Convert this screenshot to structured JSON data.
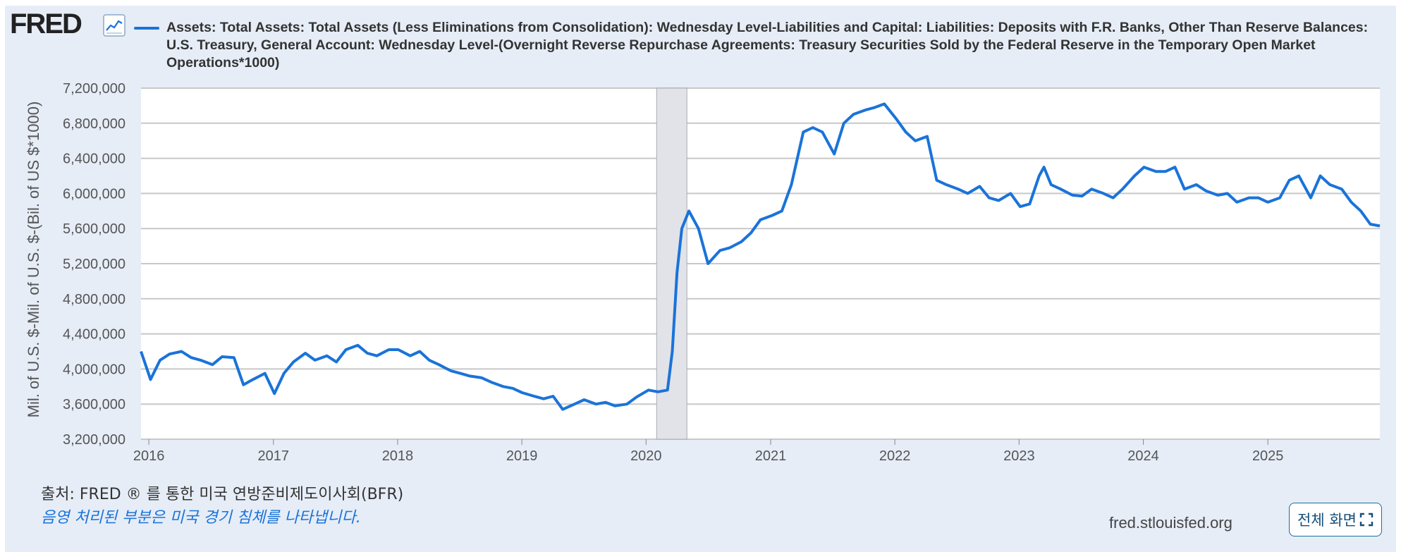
{
  "header": {
    "logo_text": "FRED",
    "logo_icon": "trend-line-icon",
    "legend_text": "Assets: Total Assets: Total Assets (Less Eliminations from Consolidation): Wednesday Level-Liabilities and Capital: Liabilities: Deposits with F.R. Banks, Other Than Reserve Balances: U.S. Treasury, General Account: Wednesday Level-(Overnight Reverse Repurchase Agreements: Treasury Securities Sold by the Federal Reserve in the Temporary Open Market Operations*1000)"
  },
  "colors": {
    "series": "#1a73d9",
    "background": "#e6edf7",
    "plot_background": "#ffffff",
    "grid": "#c8c8c8",
    "recession": "#e1e3e8"
  },
  "footer": {
    "source": "출처: FRED ® 를 통한 미국 연방준비제도이사회(BFR)",
    "recession_note": "음영 처리된 부분은 미국 경기 침체를 나타냅니다.",
    "site": "fred.stlouisfed.org",
    "fullscreen_label": "전체 화면"
  },
  "chart_data": {
    "type": "line",
    "title": "Assets: Total Assets: Total Assets (Less Eliminations from Consolidation): Wednesday Level-Liabilities and Capital: Liabilities: Deposits with F.R. Banks, Other Than Reserve Balances: U.S. Treasury, General Account: Wednesday Level-(Overnight Reverse Repurchase Agreements: Treasury Securities Sold by the Federal Reserve in the Temporary Open Market Operations*1000)",
    "ylabel": "Mil. of U.S. $-Mil. of U.S. $-(Bil. of US $*1000)",
    "xlabel": "",
    "x_ticks": [
      "2016",
      "2017",
      "2018",
      "2019",
      "2020",
      "2021",
      "2022",
      "2023",
      "2024",
      "2025"
    ],
    "y_ticks": [
      "3,200,000",
      "3,600,000",
      "4,000,000",
      "4,400,000",
      "4,800,000",
      "5,200,000",
      "5,600,000",
      "6,000,000",
      "6,400,000",
      "6,800,000",
      "7,200,000"
    ],
    "xlim": [
      "2015-12-09",
      "2025-11-26"
    ],
    "ylim": [
      3200000,
      7200000
    ],
    "grid": true,
    "recessions": [
      {
        "start": "2020-02-01",
        "end": "2020-04-30"
      }
    ],
    "series": [
      {
        "color": "#1a73d9",
        "x": [
          "2015-12-09",
          "2016-01-06",
          "2016-02-03",
          "2016-03-02",
          "2016-04-06",
          "2016-05-04",
          "2016-06-01",
          "2016-07-06",
          "2016-08-03",
          "2016-09-07",
          "2016-10-05",
          "2016-11-02",
          "2016-12-07",
          "2017-01-04",
          "2017-02-01",
          "2017-03-01",
          "2017-04-05",
          "2017-05-03",
          "2017-06-07",
          "2017-07-05",
          "2017-08-02",
          "2017-09-06",
          "2017-10-04",
          "2017-11-01",
          "2017-12-06",
          "2018-01-03",
          "2018-02-07",
          "2018-03-07",
          "2018-04-04",
          "2018-05-02",
          "2018-06-06",
          "2018-07-04",
          "2018-08-01",
          "2018-09-05",
          "2018-10-03",
          "2018-11-07",
          "2018-12-05",
          "2019-01-02",
          "2019-02-06",
          "2019-03-06",
          "2019-04-03",
          "2019-05-01",
          "2019-06-05",
          "2019-07-03",
          "2019-08-07",
          "2019-09-04",
          "2019-10-02",
          "2019-11-06",
          "2019-12-04",
          "2020-01-08",
          "2020-02-05",
          "2020-03-04",
          "2020-03-18",
          "2020-04-01",
          "2020-04-15",
          "2020-05-06",
          "2020-06-03",
          "2020-07-01",
          "2020-08-05",
          "2020-09-02",
          "2020-10-07",
          "2020-11-04",
          "2020-12-02",
          "2021-01-06",
          "2021-02-03",
          "2021-03-03",
          "2021-04-07",
          "2021-05-05",
          "2021-06-02",
          "2021-07-07",
          "2021-08-04",
          "2021-09-01",
          "2021-10-06",
          "2021-11-03",
          "2021-12-01",
          "2022-01-05",
          "2022-02-02",
          "2022-03-02",
          "2022-04-06",
          "2022-05-04",
          "2022-06-01",
          "2022-07-06",
          "2022-08-03",
          "2022-09-07",
          "2022-10-05",
          "2022-11-02",
          "2022-12-07",
          "2023-01-04",
          "2023-02-01",
          "2023-03-01",
          "2023-03-15",
          "2023-04-05",
          "2023-05-03",
          "2023-06-07",
          "2023-07-05",
          "2023-08-02",
          "2023-09-06",
          "2023-10-04",
          "2023-11-01",
          "2023-12-06",
          "2024-01-03",
          "2024-02-07",
          "2024-03-06",
          "2024-04-03",
          "2024-05-01",
          "2024-06-05",
          "2024-07-03",
          "2024-08-07",
          "2024-09-04",
          "2024-10-02",
          "2024-11-06",
          "2024-12-04",
          "2025-01-01",
          "2025-02-05",
          "2025-03-05",
          "2025-04-02",
          "2025-05-07",
          "2025-06-04",
          "2025-07-02",
          "2025-08-06",
          "2025-09-03",
          "2025-10-01",
          "2025-10-29",
          "2025-11-26"
        ],
        "values": [
          4200000,
          3880000,
          4100000,
          4170000,
          4200000,
          4130000,
          4100000,
          4050000,
          4140000,
          4130000,
          3820000,
          3880000,
          3950000,
          3720000,
          3950000,
          4080000,
          4180000,
          4100000,
          4150000,
          4080000,
          4220000,
          4270000,
          4180000,
          4150000,
          4220000,
          4220000,
          4150000,
          4200000,
          4100000,
          4050000,
          3980000,
          3950000,
          3920000,
          3900000,
          3850000,
          3800000,
          3780000,
          3730000,
          3690000,
          3660000,
          3690000,
          3540000,
          3600000,
          3650000,
          3600000,
          3620000,
          3580000,
          3600000,
          3680000,
          3760000,
          3740000,
          3760000,
          4200000,
          5100000,
          5600000,
          5800000,
          5600000,
          5200000,
          5350000,
          5380000,
          5450000,
          5550000,
          5700000,
          5750000,
          5800000,
          6100000,
          6700000,
          6750000,
          6700000,
          6450000,
          6800000,
          6900000,
          6950000,
          6980000,
          7020000,
          6850000,
          6700000,
          6600000,
          6650000,
          6150000,
          6100000,
          6050000,
          6000000,
          6080000,
          5950000,
          5920000,
          6000000,
          5850000,
          5880000,
          6200000,
          6300000,
          6100000,
          6050000,
          5980000,
          5970000,
          6050000,
          6000000,
          5950000,
          6050000,
          6200000,
          6300000,
          6250000,
          6250000,
          6300000,
          6050000,
          6100000,
          6030000,
          5980000,
          6000000,
          5900000,
          5950000,
          5950000,
          5900000,
          5950000,
          6150000,
          6200000,
          5950000,
          6200000,
          6100000,
          6050000,
          5900000,
          5800000,
          5650000,
          5630000
        ]
      }
    ]
  }
}
